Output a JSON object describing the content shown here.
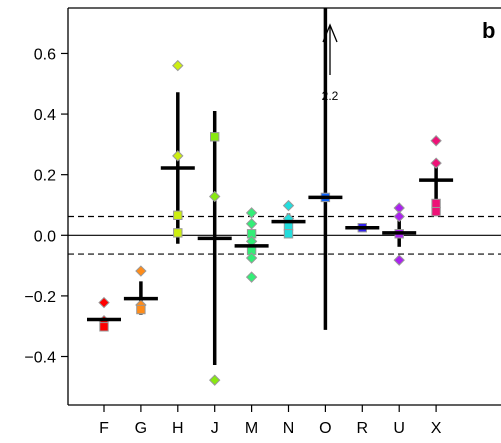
{
  "panel_label": "b",
  "annotation": {
    "text": "2.2"
  },
  "chart_data": {
    "type": "scatter",
    "title": "",
    "xlabel": "",
    "ylabel": "",
    "categories": [
      "F",
      "G",
      "H",
      "J",
      "M",
      "N",
      "O",
      "R",
      "U",
      "X"
    ],
    "ylim": [
      -0.56,
      0.75
    ],
    "yticks": [
      -0.4,
      -0.2,
      0.0,
      0.2,
      0.4,
      0.6
    ],
    "ytick_labels": [
      "−0.4",
      "−0.2",
      "0.0",
      "0.2",
      "0.4",
      "0.6"
    ],
    "reference_lines": [
      {
        "y": 0.0,
        "style": "solid"
      },
      {
        "y": 0.062,
        "style": "dashed"
      },
      {
        "y": -0.062,
        "style": "dashed"
      }
    ],
    "groups": [
      {
        "category": "F",
        "color": "#ff0000",
        "mean": -0.278,
        "ci": [
          -0.278,
          -0.278
        ],
        "points": [
          {
            "y": -0.222,
            "marker": "diamond"
          },
          {
            "y": -0.282,
            "marker": "diamond"
          },
          {
            "y": -0.302,
            "marker": "square"
          }
        ]
      },
      {
        "category": "G",
        "color": "#ff8c1a",
        "mean": -0.209,
        "ci": [
          -0.262,
          -0.152
        ],
        "points": [
          {
            "y": -0.118,
            "marker": "diamond"
          },
          {
            "y": -0.23,
            "marker": "diamond"
          },
          {
            "y": -0.245,
            "marker": "square"
          }
        ]
      },
      {
        "category": "H",
        "color": "#ccee11",
        "mean": 0.222,
        "ci": [
          -0.028,
          0.472
        ],
        "points": [
          {
            "y": 0.56,
            "marker": "diamond"
          },
          {
            "y": 0.262,
            "marker": "diamond"
          },
          {
            "y": 0.066,
            "marker": "square"
          },
          {
            "y": 0.008,
            "marker": "square"
          }
        ]
      },
      {
        "category": "J",
        "color": "#88e811",
        "mean": -0.01,
        "ci": [
          -0.428,
          0.41
        ],
        "points": [
          {
            "y": 0.325,
            "marker": "square"
          },
          {
            "y": 0.128,
            "marker": "diamond"
          },
          {
            "y": -0.478,
            "marker": "diamond"
          }
        ]
      },
      {
        "category": "M",
        "color": "#33ee77",
        "mean": -0.035,
        "ci": [
          -0.072,
          0.002
        ],
        "points": [
          {
            "y": 0.074,
            "marker": "diamond"
          },
          {
            "y": 0.038,
            "marker": "diamond"
          },
          {
            "y": 0.005,
            "marker": "square"
          },
          {
            "y": -0.02,
            "marker": "diamond"
          },
          {
            "y": -0.05,
            "marker": "square"
          },
          {
            "y": -0.075,
            "marker": "diamond"
          },
          {
            "y": -0.138,
            "marker": "diamond"
          }
        ]
      },
      {
        "category": "N",
        "color": "#22dddd",
        "mean": 0.045,
        "ci": [
          0.018,
          0.072
        ],
        "points": [
          {
            "y": 0.098,
            "marker": "diamond"
          },
          {
            "y": 0.055,
            "marker": "diamond"
          },
          {
            "y": 0.03,
            "marker": "square"
          },
          {
            "y": 0.005,
            "marker": "square"
          }
        ]
      },
      {
        "category": "O",
        "color": "#1166ff",
        "mean": 0.125,
        "ci": [
          -0.312,
          2.2
        ],
        "points": [
          {
            "y": 0.125,
            "marker": "square"
          }
        ]
      },
      {
        "category": "R",
        "color": "#3322ee",
        "mean": 0.025,
        "ci": [
          0.025,
          0.025
        ],
        "points": [
          {
            "y": 0.025,
            "marker": "square"
          }
        ]
      },
      {
        "category": "U",
        "color": "#aa22ee",
        "mean": 0.008,
        "ci": [
          -0.038,
          0.06
        ],
        "points": [
          {
            "y": 0.09,
            "marker": "diamond"
          },
          {
            "y": 0.062,
            "marker": "diamond"
          },
          {
            "y": 0.005,
            "marker": "square"
          },
          {
            "y": -0.082,
            "marker": "diamond"
          }
        ]
      },
      {
        "category": "X",
        "color": "#ee1177",
        "mean": 0.182,
        "ci": [
          0.115,
          0.245
        ],
        "points": [
          {
            "y": 0.312,
            "marker": "diamond"
          },
          {
            "y": 0.238,
            "marker": "diamond"
          },
          {
            "y": 0.105,
            "marker": "square"
          },
          {
            "y": 0.078,
            "marker": "square"
          }
        ]
      }
    ]
  }
}
